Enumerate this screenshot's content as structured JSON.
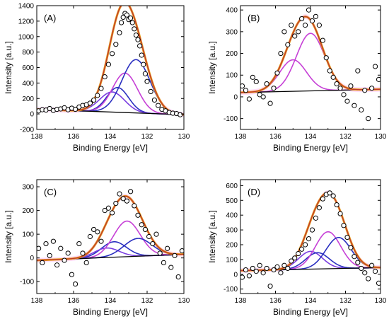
{
  "figure": {
    "background": "#ffffff",
    "colors": {
      "envelope": "#c0392b",
      "fit_sum": "#e6a020",
      "component_magenta": "#c640d6",
      "component_violet": "#7a3ee0",
      "component_blue": "#2a2fc0",
      "component_indigo": "#3d3aa8",
      "baseline": "#000000",
      "points": "#000000",
      "fit_band": "#ff9ff0"
    }
  },
  "chart_data": [
    {
      "type": "scatter",
      "panel_label": "(A)",
      "xlabel": "Binding Energy [eV]",
      "ylabel": "Intensity [a.u.]",
      "xlim": [
        138,
        130
      ],
      "ylim": [
        -200,
        1400
      ],
      "xticks": [
        138,
        136,
        134,
        132,
        130
      ],
      "yticks": [
        -200,
        0,
        200,
        400,
        600,
        800,
        1000,
        1200,
        1400
      ],
      "baseline": [
        [
          138,
          60
        ],
        [
          130,
          -10
        ]
      ],
      "components": [
        {
          "color": "component_blue",
          "center": 133.6,
          "fwhm": 1.4,
          "amp": 320
        },
        {
          "color": "component_violet",
          "center": 133.9,
          "fwhm": 1.6,
          "amp": 260
        },
        {
          "color": "component_magenta",
          "center": 133.2,
          "fwhm": 1.6,
          "amp": 510
        },
        {
          "color": "component_blue",
          "center": 132.6,
          "fwhm": 1.8,
          "amp": 690
        }
      ],
      "points": [
        [
          137.9,
          40
        ],
        [
          137.7,
          55
        ],
        [
          137.5,
          50
        ],
        [
          137.3,
          70
        ],
        [
          137.1,
          45
        ],
        [
          136.9,
          60
        ],
        [
          136.7,
          65
        ],
        [
          136.5,
          80
        ],
        [
          136.3,
          55
        ],
        [
          136.1,
          75
        ],
        [
          135.9,
          60
        ],
        [
          135.7,
          90
        ],
        [
          135.5,
          110
        ],
        [
          135.3,
          120
        ],
        [
          135.1,
          140
        ],
        [
          134.9,
          180
        ],
        [
          134.7,
          240
        ],
        [
          134.5,
          330
        ],
        [
          134.3,
          480
        ],
        [
          134.1,
          640
        ],
        [
          133.9,
          780
        ],
        [
          133.7,
          900
        ],
        [
          133.5,
          1050
        ],
        [
          133.4,
          1180
        ],
        [
          133.3,
          1250
        ],
        [
          133.2,
          1300
        ],
        [
          133.1,
          1280
        ],
        [
          133.0,
          1220
        ],
        [
          132.9,
          1240
        ],
        [
          132.8,
          1180
        ],
        [
          132.7,
          1100
        ],
        [
          132.6,
          1020
        ],
        [
          132.5,
          960
        ],
        [
          132.4,
          880
        ],
        [
          132.3,
          760
        ],
        [
          132.2,
          640
        ],
        [
          132.1,
          520
        ],
        [
          132.0,
          420
        ],
        [
          131.8,
          290
        ],
        [
          131.6,
          180
        ],
        [
          131.4,
          110
        ],
        [
          131.2,
          60
        ],
        [
          131.0,
          40
        ],
        [
          130.8,
          20
        ],
        [
          130.6,
          10
        ],
        [
          130.4,
          5
        ],
        [
          130.2,
          -10
        ]
      ]
    },
    {
      "type": "scatter",
      "panel_label": "(B)",
      "xlabel": "Binding Energy [eV]",
      "ylabel": "Intensity [a.u.]",
      "xlim": [
        138,
        130
      ],
      "ylim": [
        -150,
        420
      ],
      "xticks": [
        138,
        136,
        134,
        132,
        130
      ],
      "yticks": [
        -100,
        0,
        100,
        200,
        300,
        400
      ],
      "baseline": [
        [
          138,
          20
        ],
        [
          130,
          35
        ]
      ],
      "components": [
        {
          "color": "component_magenta",
          "center": 135.0,
          "fwhm": 1.8,
          "amp": 145
        },
        {
          "color": "component_magenta",
          "center": 134.0,
          "fwhm": 1.9,
          "amp": 265
        }
      ],
      "points": [
        [
          137.9,
          50
        ],
        [
          137.7,
          30
        ],
        [
          137.5,
          -10
        ],
        [
          137.3,
          90
        ],
        [
          137.1,
          70
        ],
        [
          136.9,
          10
        ],
        [
          136.7,
          0
        ],
        [
          136.5,
          60
        ],
        [
          136.3,
          -30
        ],
        [
          136.1,
          40
        ],
        [
          135.9,
          110
        ],
        [
          135.7,
          200
        ],
        [
          135.5,
          300
        ],
        [
          135.3,
          240
        ],
        [
          135.1,
          330
        ],
        [
          134.9,
          280
        ],
        [
          134.7,
          300
        ],
        [
          134.5,
          360
        ],
        [
          134.3,
          330
        ],
        [
          134.1,
          400
        ],
        [
          133.9,
          350
        ],
        [
          133.7,
          370
        ],
        [
          133.5,
          330
        ],
        [
          133.3,
          260
        ],
        [
          133.1,
          180
        ],
        [
          132.9,
          120
        ],
        [
          132.7,
          90
        ],
        [
          132.5,
          60
        ],
        [
          132.3,
          40
        ],
        [
          132.1,
          10
        ],
        [
          131.9,
          -20
        ],
        [
          131.7,
          50
        ],
        [
          131.5,
          -40
        ],
        [
          131.3,
          120
        ],
        [
          131.1,
          -60
        ],
        [
          130.9,
          30
        ],
        [
          130.7,
          -100
        ],
        [
          130.5,
          40
        ],
        [
          130.3,
          140
        ],
        [
          130.1,
          80
        ]
      ]
    },
    {
      "type": "scatter",
      "panel_label": "(C)",
      "xlabel": "Binding Energy [eV]",
      "ylabel": "Intensity [a.u.]",
      "xlim": [
        138,
        130
      ],
      "ylim": [
        -150,
        330
      ],
      "xticks": [
        138,
        136,
        134,
        132,
        130
      ],
      "yticks": [
        -100,
        0,
        100,
        200,
        300
      ],
      "baseline": [
        [
          138,
          -10
        ],
        [
          130,
          15
        ]
      ],
      "components": [
        {
          "color": "component_blue",
          "center": 133.8,
          "fwhm": 1.6,
          "amp": 65
        },
        {
          "color": "component_violet",
          "center": 134.2,
          "fwhm": 1.6,
          "amp": 40
        },
        {
          "color": "component_magenta",
          "center": 133.1,
          "fwhm": 1.7,
          "amp": 150
        },
        {
          "color": "component_blue",
          "center": 132.5,
          "fwhm": 1.8,
          "amp": 75
        }
      ],
      "points": [
        [
          137.9,
          40
        ],
        [
          137.7,
          -20
        ],
        [
          137.5,
          60
        ],
        [
          137.3,
          10
        ],
        [
          137.1,
          70
        ],
        [
          136.9,
          -30
        ],
        [
          136.7,
          40
        ],
        [
          136.5,
          -10
        ],
        [
          136.3,
          20
        ],
        [
          136.1,
          -70
        ],
        [
          135.9,
          -110
        ],
        [
          135.7,
          60
        ],
        [
          135.5,
          20
        ],
        [
          135.3,
          -20
        ],
        [
          135.1,
          90
        ],
        [
          134.9,
          120
        ],
        [
          134.7,
          110
        ],
        [
          134.5,
          70
        ],
        [
          134.3,
          200
        ],
        [
          134.1,
          210
        ],
        [
          133.9,
          190
        ],
        [
          133.7,
          230
        ],
        [
          133.5,
          270
        ],
        [
          133.3,
          250
        ],
        [
          133.1,
          240
        ],
        [
          132.9,
          280
        ],
        [
          132.7,
          220
        ],
        [
          132.5,
          180
        ],
        [
          132.3,
          140
        ],
        [
          132.1,
          120
        ],
        [
          131.9,
          90
        ],
        [
          131.7,
          60
        ],
        [
          131.5,
          100
        ],
        [
          131.3,
          20
        ],
        [
          131.1,
          -20
        ],
        [
          130.9,
          40
        ],
        [
          130.7,
          -40
        ],
        [
          130.5,
          10
        ],
        [
          130.3,
          -80
        ],
        [
          130.1,
          30
        ]
      ]
    },
    {
      "type": "scatter",
      "panel_label": "(D)",
      "xlabel": "Binding Energy [eV]",
      "ylabel": "Intensity [a.u.]",
      "xlim": [
        138,
        130
      ],
      "ylim": [
        -130,
        640
      ],
      "xticks": [
        138,
        136,
        134,
        132,
        130
      ],
      "yticks": [
        -100,
        0,
        100,
        200,
        300,
        400,
        500,
        600
      ],
      "baseline": [
        [
          138,
          25
        ],
        [
          130,
          45
        ]
      ],
      "components": [
        {
          "color": "component_violet",
          "center": 134.0,
          "fwhm": 1.6,
          "amp": 120
        },
        {
          "color": "component_blue",
          "center": 133.6,
          "fwhm": 1.6,
          "amp": 110
        },
        {
          "color": "component_magenta",
          "center": 133.0,
          "fwhm": 1.7,
          "amp": 250
        },
        {
          "color": "component_blue",
          "center": 132.4,
          "fwhm": 1.7,
          "amp": 210
        }
      ],
      "points": [
        [
          137.9,
          -20
        ],
        [
          137.7,
          30
        ],
        [
          137.5,
          -10
        ],
        [
          137.3,
          40
        ],
        [
          137.1,
          20
        ],
        [
          136.9,
          60
        ],
        [
          136.7,
          10
        ],
        [
          136.5,
          40
        ],
        [
          136.3,
          -80
        ],
        [
          136.1,
          30
        ],
        [
          135.9,
          50
        ],
        [
          135.7,
          10
        ],
        [
          135.5,
          60
        ],
        [
          135.3,
          40
        ],
        [
          135.1,
          90
        ],
        [
          134.9,
          110
        ],
        [
          134.7,
          140
        ],
        [
          134.5,
          170
        ],
        [
          134.3,
          200
        ],
        [
          134.1,
          240
        ],
        [
          133.9,
          300
        ],
        [
          133.7,
          380
        ],
        [
          133.5,
          450
        ],
        [
          133.3,
          510
        ],
        [
          133.1,
          540
        ],
        [
          132.9,
          550
        ],
        [
          132.7,
          530
        ],
        [
          132.5,
          470
        ],
        [
          132.3,
          410
        ],
        [
          132.1,
          330
        ],
        [
          131.9,
          250
        ],
        [
          131.7,
          180
        ],
        [
          131.5,
          120
        ],
        [
          131.3,
          80
        ],
        [
          131.1,
          40
        ],
        [
          130.9,
          10
        ],
        [
          130.7,
          -30
        ],
        [
          130.5,
          60
        ],
        [
          130.3,
          20
        ],
        [
          130.1,
          -60
        ]
      ]
    }
  ]
}
